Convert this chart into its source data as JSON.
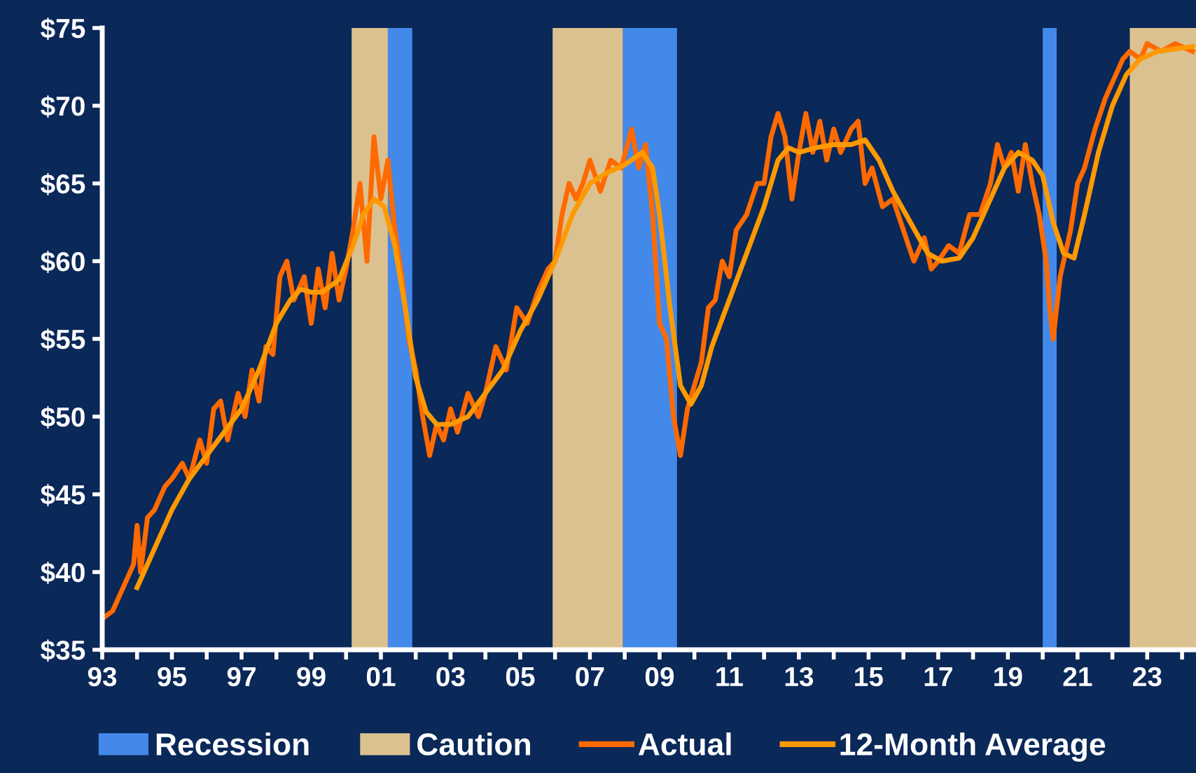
{
  "chart_data": {
    "type": "line",
    "xlim": [
      1993,
      2024.4
    ],
    "ylim": [
      35,
      75
    ],
    "xticks": [
      {
        "value": 1993,
        "label": "93"
      },
      {
        "value": 1994,
        "label": null
      },
      {
        "value": 1995,
        "label": "95"
      },
      {
        "value": 1996,
        "label": null
      },
      {
        "value": 1997,
        "label": "97"
      },
      {
        "value": 1998,
        "label": null
      },
      {
        "value": 1999,
        "label": "99"
      },
      {
        "value": 2000,
        "label": null
      },
      {
        "value": 2001,
        "label": "01"
      },
      {
        "value": 2002,
        "label": null
      },
      {
        "value": 2003,
        "label": "03"
      },
      {
        "value": 2004,
        "label": null
      },
      {
        "value": 2005,
        "label": "05"
      },
      {
        "value": 2006,
        "label": null
      },
      {
        "value": 2007,
        "label": "07"
      },
      {
        "value": 2008,
        "label": null
      },
      {
        "value": 2009,
        "label": "09"
      },
      {
        "value": 2010,
        "label": null
      },
      {
        "value": 2011,
        "label": "11"
      },
      {
        "value": 2012,
        "label": null
      },
      {
        "value": 2013,
        "label": "13"
      },
      {
        "value": 2014,
        "label": null
      },
      {
        "value": 2015,
        "label": "15"
      },
      {
        "value": 2016,
        "label": null
      },
      {
        "value": 2017,
        "label": "17"
      },
      {
        "value": 2018,
        "label": null
      },
      {
        "value": 2019,
        "label": "19"
      },
      {
        "value": 2020,
        "label": null
      },
      {
        "value": 2021,
        "label": "21"
      },
      {
        "value": 2022,
        "label": null
      },
      {
        "value": 2023,
        "label": "23"
      },
      {
        "value": 2024,
        "label": null
      }
    ],
    "yticks": [
      {
        "value": 35,
        "label": "$35"
      },
      {
        "value": 40,
        "label": "$40"
      },
      {
        "value": 45,
        "label": "$45"
      },
      {
        "value": 50,
        "label": "$50"
      },
      {
        "value": 55,
        "label": "$55"
      },
      {
        "value": 60,
        "label": "$60"
      },
      {
        "value": 65,
        "label": "$65"
      },
      {
        "value": 70,
        "label": "$70"
      },
      {
        "value": 75,
        "label": "$75"
      }
    ],
    "grid": false,
    "legend": "bottom",
    "marker": "none",
    "line_style": "solid",
    "bands": [
      {
        "axis": "x",
        "from": 2001.2,
        "to": 2001.9,
        "label": "Recession",
        "color": "#4389ea"
      },
      {
        "axis": "x",
        "from": 2000.16,
        "to": 2001.2,
        "label": "Caution",
        "color": "#dcc190"
      },
      {
        "axis": "x",
        "from": 2005.93,
        "to": 2007.95,
        "color": "#dcc190"
      },
      {
        "axis": "x",
        "from": 2007.95,
        "to": 2009.5,
        "color": "#4389ea"
      },
      {
        "axis": "x",
        "from": 2020.0,
        "to": 2020.4,
        "color": "#4389ea"
      },
      {
        "axis": "x",
        "from": 2022.5,
        "to": 2024.4,
        "color": "#dcc190"
      }
    ],
    "series": [
      {
        "name": "Actual",
        "color": "#ff6a00",
        "x": [
          1993.0,
          1993.3,
          1993.6,
          1993.9,
          1994.0,
          1994.1,
          1994.3,
          1994.5,
          1994.8,
          1995.0,
          1995.3,
          1995.5,
          1995.8,
          1996.0,
          1996.2,
          1996.4,
          1996.6,
          1996.9,
          1997.1,
          1997.3,
          1997.5,
          1997.7,
          1997.9,
          1998.1,
          1998.3,
          1998.5,
          1998.8,
          1999.0,
          1999.2,
          1999.4,
          1999.6,
          1999.8,
          2000.0,
          2000.2,
          2000.4,
          2000.6,
          2000.8,
          2001.0,
          2001.2,
          2001.4,
          2001.6,
          2001.8,
          2002.0,
          2002.2,
          2002.4,
          2002.6,
          2002.8,
          2003.0,
          2003.2,
          2003.5,
          2003.8,
          2004.0,
          2004.3,
          2004.6,
          2004.9,
          2005.2,
          2005.5,
          2005.8,
          2006.0,
          2006.2,
          2006.4,
          2006.6,
          2006.8,
          2007.0,
          2007.3,
          2007.6,
          2007.9,
          2008.2,
          2008.4,
          2008.6,
          2008.8,
          2009.0,
          2009.2,
          2009.4,
          2009.6,
          2009.8,
          2010.0,
          2010.2,
          2010.4,
          2010.6,
          2010.8,
          2011.0,
          2011.2,
          2011.5,
          2011.8,
          2012.0,
          2012.2,
          2012.4,
          2012.6,
          2012.8,
          2013.0,
          2013.2,
          2013.4,
          2013.6,
          2013.8,
          2014.0,
          2014.2,
          2014.5,
          2014.7,
          2014.9,
          2015.1,
          2015.4,
          2015.7,
          2016.0,
          2016.3,
          2016.6,
          2016.8,
          2017.0,
          2017.3,
          2017.6,
          2017.9,
          2018.2,
          2018.5,
          2018.7,
          2018.9,
          2019.1,
          2019.3,
          2019.5,
          2019.7,
          2019.9,
          2020.1,
          2020.2,
          2020.3,
          2020.5,
          2020.8,
          2021.0,
          2021.2,
          2021.5,
          2021.8,
          2022.0,
          2022.3,
          2022.5,
          2022.8,
          2023.0,
          2023.4,
          2023.8,
          2024.3
        ],
        "values": [
          37,
          37.5,
          39,
          40.5,
          43,
          40,
          43.5,
          44,
          45.5,
          46,
          47,
          46,
          48.5,
          47,
          50.5,
          51,
          48.5,
          51.5,
          50,
          53,
          51,
          54.5,
          54,
          59,
          60,
          57.5,
          59,
          56,
          59.5,
          57,
          60.5,
          57.5,
          59.5,
          62,
          65,
          60,
          68,
          64,
          66.5,
          62,
          59,
          55,
          53,
          50,
          47.5,
          49.5,
          48.5,
          50.5,
          49,
          51.5,
          50,
          51.5,
          54.5,
          53,
          57,
          56,
          58,
          59.5,
          60,
          63,
          65,
          64,
          65,
          66.5,
          64.5,
          66.5,
          66,
          68.5,
          66,
          67.5,
          63,
          56,
          55,
          50,
          47.5,
          50.5,
          52,
          53.5,
          57,
          57.5,
          60,
          59,
          62,
          63,
          65,
          65,
          68,
          69.5,
          68,
          64,
          67,
          69.5,
          67,
          69,
          66.5,
          68.5,
          67,
          68.5,
          69,
          65,
          66,
          63.5,
          64,
          62,
          60,
          61.5,
          59.5,
          60,
          61,
          60.5,
          63,
          63,
          65,
          67.5,
          66,
          67,
          64.5,
          67.5,
          65,
          63,
          60,
          57,
          55,
          59,
          62,
          65,
          66,
          68.5,
          70.5,
          71.5,
          73,
          73.5,
          73,
          74,
          73.5,
          74,
          73.5
        ]
      },
      {
        "name": "12-Month Average",
        "color": "#ff9900",
        "x": [
          1994.0,
          1994.5,
          1995.0,
          1995.5,
          1996.0,
          1996.5,
          1997.0,
          1997.5,
          1998.0,
          1998.4,
          1998.7,
          1999.0,
          1999.3,
          1999.8,
          2000.2,
          2000.5,
          2000.8,
          2001.1,
          2001.4,
          2001.7,
          2002.0,
          2002.3,
          2002.6,
          2003.0,
          2003.5,
          2004.0,
          2004.5,
          2005.0,
          2005.5,
          2006.0,
          2006.5,
          2007.0,
          2007.5,
          2008.0,
          2008.5,
          2008.8,
          2009.0,
          2009.3,
          2009.6,
          2009.9,
          2010.2,
          2010.5,
          2011.0,
          2011.5,
          2012.0,
          2012.4,
          2012.7,
          2013.0,
          2013.5,
          2014.0,
          2014.5,
          2014.9,
          2015.3,
          2015.7,
          2016.2,
          2016.7,
          2017.1,
          2017.6,
          2018.0,
          2018.5,
          2018.9,
          2019.3,
          2019.7,
          2020.0,
          2020.3,
          2020.6,
          2020.9,
          2021.2,
          2021.6,
          2022.0,
          2022.4,
          2022.8,
          2023.3,
          2024.3
        ],
        "values": [
          39,
          41.5,
          44,
          46,
          47.5,
          49,
          50.5,
          53,
          56,
          57.5,
          58.2,
          58,
          58,
          58.8,
          61,
          63,
          64,
          63.5,
          61,
          57,
          52.5,
          50.3,
          49.5,
          49.5,
          50,
          51.5,
          53,
          55.5,
          57.5,
          60,
          63,
          65,
          65.7,
          66.2,
          67,
          66,
          63,
          57,
          52,
          50.8,
          52,
          54.5,
          57.5,
          60.5,
          63.5,
          66.5,
          67.3,
          67,
          67.3,
          67.5,
          67.5,
          67.8,
          66.5,
          64.5,
          62.5,
          60.5,
          60,
          60.2,
          61.5,
          64,
          66,
          67,
          66.5,
          65.5,
          62.5,
          60.5,
          60.2,
          63,
          67,
          70,
          72,
          73,
          73.5,
          73.8
        ]
      }
    ]
  }
}
